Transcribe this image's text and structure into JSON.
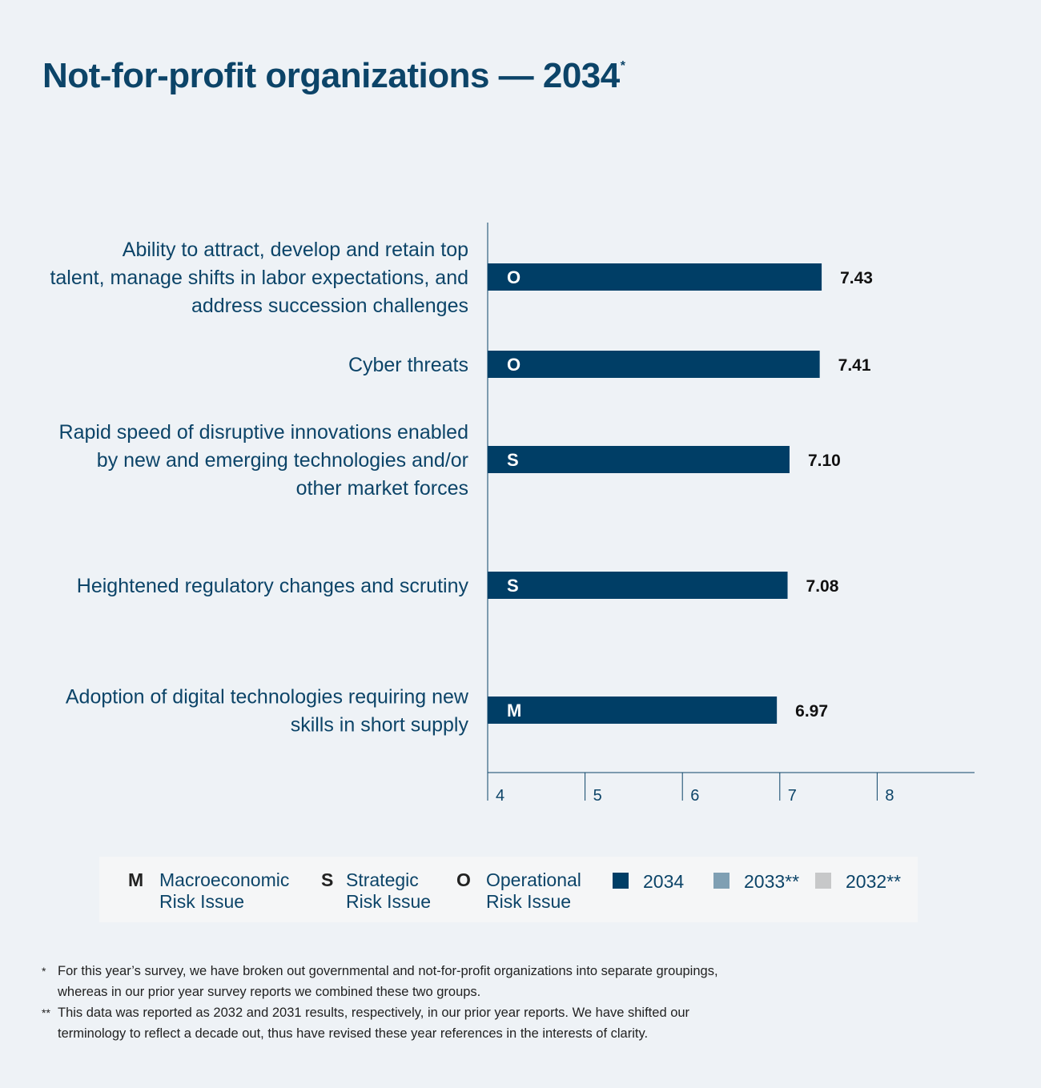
{
  "title": "Not-for-profit organizations — 2034",
  "title_mark": "*",
  "chart_data": {
    "type": "bar",
    "orientation": "horizontal",
    "categories": [
      [
        "Ability to attract, develop and retain top",
        "talent, manage shifts in labor expectations, and",
        "address succession challenges"
      ],
      [
        "Cyber threats"
      ],
      [
        "Rapid speed of disruptive innovations enabled",
        "by new and emerging technologies and/or",
        "other market forces"
      ],
      [
        "Heightened regulatory changes and scrutiny"
      ],
      [
        "Adoption of digital technologies requiring new",
        "skills in short supply"
      ]
    ],
    "series": [
      {
        "name": "2034",
        "values": [
          7.43,
          7.41,
          7.1,
          7.08,
          6.97
        ],
        "color": "#003e66"
      }
    ],
    "value_labels": [
      "7.43",
      "7.41",
      "7.10",
      "7.08",
      "6.97"
    ],
    "bar_tags": [
      "O",
      "O",
      "S",
      "S",
      "M"
    ],
    "xlim": [
      4,
      9
    ],
    "xticks": [
      "4",
      "5",
      "6",
      "7",
      "8"
    ],
    "tick_values": [
      4,
      5,
      6,
      7,
      8
    ]
  },
  "legend": {
    "categories": [
      {
        "letter": "M",
        "label": "Macroeconomic Risk Issue"
      },
      {
        "letter": "S",
        "label": "Strategic Risk Issue"
      },
      {
        "letter": "O",
        "label": "Operational Risk Issue"
      }
    ],
    "years": [
      {
        "label": "2034",
        "color": "#003e66"
      },
      {
        "label": "2033**",
        "color": "#7f9fb3"
      },
      {
        "label": "2032**",
        "color": "#c7c8c9"
      }
    ]
  },
  "footnotes": [
    {
      "mark": "*",
      "text": "For this year’s survey, we have broken out governmental and not-for-profit organizations into separate groupings, whereas in our prior year survey reports we combined these two groups."
    },
    {
      "mark": "**",
      "text": "This data was reported as 2032 and 2031 results, respectively, in our prior year reports. We have shifted our terminology to reflect a decade out, thus have revised these year references in the interests of clarity."
    }
  ]
}
